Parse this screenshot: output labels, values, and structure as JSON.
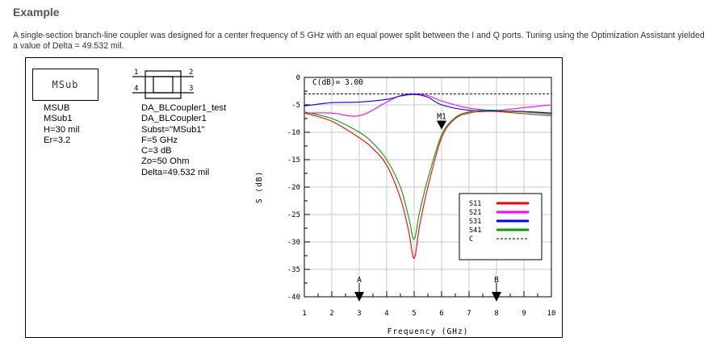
{
  "heading": "Example",
  "paragraph": "A single-section branch-line coupler was designed for a center frequency of 5 GHz with an equal power split between the I and Q ports. Tuning using the Optimization Assistant yielded a value of Delta = 49.532 mil.",
  "msub_component": {
    "box_label": "MSub",
    "params": [
      "MSUB",
      "MSub1",
      "H=30 mil",
      "Er=3.2"
    ]
  },
  "coupler_component": {
    "port_labels": [
      "1",
      "2",
      "3",
      "4"
    ],
    "params": [
      "DA_BLCoupler1_test",
      "DA_BLCoupler1",
      "Subst=\"MSub1\"",
      "F=5 GHz",
      "C=3 dB",
      "Zo=50 Ohm",
      "Delta=49.532 mil"
    ]
  },
  "chart_data": {
    "type": "line",
    "xlabel": "Frequency (GHz)",
    "ylabel": "S (dB)",
    "xlim": [
      1,
      10
    ],
    "ylim": [
      -40,
      0
    ],
    "xticks": [
      1,
      2,
      3,
      4,
      5,
      6,
      7,
      8,
      9,
      10
    ],
    "yticks": [
      0,
      -5,
      -10,
      -15,
      -20,
      -25,
      -30,
      -35,
      -40
    ],
    "grid": true,
    "legend_position": "lower-right",
    "reference_line": {
      "label": "C(dB)= 3.00",
      "value": -3.0
    },
    "markers": [
      {
        "label": "A",
        "x": 3
      },
      {
        "label": "B",
        "x": 8
      },
      {
        "label": "M1",
        "x": 6,
        "y": -9.5
      }
    ],
    "series": [
      {
        "name": "S11",
        "color": "#ff0000",
        "x": [
          1,
          2,
          3,
          3.5,
          4,
          4.5,
          4.8,
          5,
          5.2,
          5.5,
          6,
          6.5,
          7,
          7.5,
          8,
          8.5,
          9,
          9.5,
          10
        ],
        "y": [
          -6.5,
          -8,
          -11,
          -13,
          -16,
          -22,
          -28,
          -33,
          -27,
          -20,
          -11,
          -7.5,
          -6.5,
          -6.2,
          -6.2,
          -6.4,
          -6.6,
          -6.8,
          -7
        ]
      },
      {
        "name": "S21",
        "color": "#ff00ff",
        "x": [
          1,
          2,
          3,
          4,
          4.5,
          5,
          5.5,
          6,
          7,
          8,
          9,
          10
        ],
        "y": [
          -6.5,
          -6.5,
          -7,
          -4.5,
          -3.3,
          -3,
          -3.3,
          -4.3,
          -5.6,
          -6,
          -5.5,
          -5
        ]
      },
      {
        "name": "S31",
        "color": "#0000ff",
        "x": [
          1,
          2,
          3,
          4,
          4.5,
          5,
          5.5,
          6,
          7,
          8,
          9,
          10
        ],
        "y": [
          -5.2,
          -4.6,
          -4.5,
          -4,
          -3.4,
          -3.1,
          -3.6,
          -5,
          -6,
          -6.1,
          -6.2,
          -6.5
        ]
      },
      {
        "name": "S41",
        "color": "#00a000",
        "x": [
          1,
          2,
          3,
          3.5,
          4,
          4.5,
          4.8,
          5,
          5.2,
          5.5,
          6,
          6.5,
          7,
          7.5,
          8,
          8.5,
          9,
          9.5,
          10
        ],
        "y": [
          -6.3,
          -7.5,
          -10,
          -12,
          -15,
          -20,
          -25.5,
          -29.5,
          -24.5,
          -18.5,
          -10.5,
          -7.3,
          -6.3,
          -6,
          -6,
          -6.2,
          -6.3,
          -6.5,
          -6.7
        ]
      },
      {
        "name": "C",
        "color": "#000000",
        "dashed": true,
        "x": [
          1,
          10
        ],
        "y": [
          -3,
          -3
        ]
      }
    ]
  }
}
